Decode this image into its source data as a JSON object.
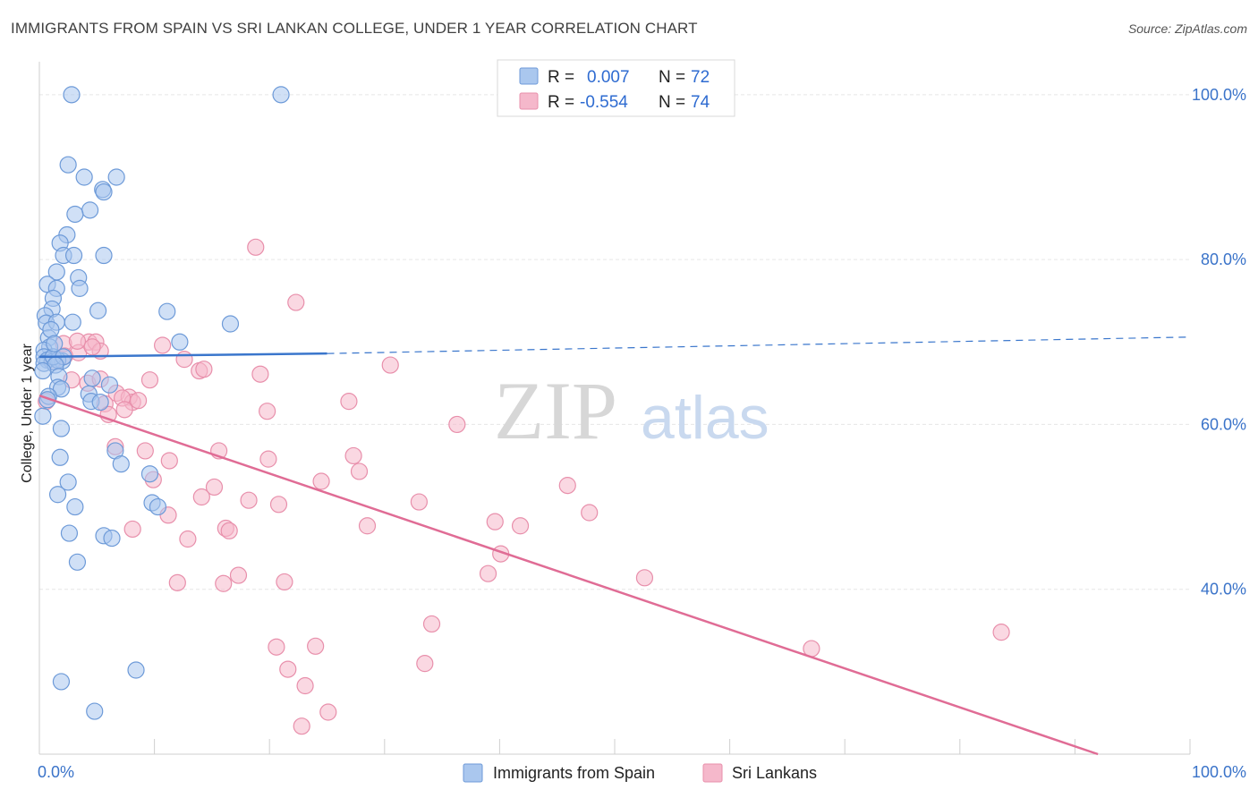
{
  "title": "IMMIGRANTS FROM SPAIN VS SRI LANKAN COLLEGE, UNDER 1 YEAR CORRELATION CHART",
  "source": "Source: ZipAtlas.com",
  "watermark": {
    "zip": "ZIP",
    "atlas": "atlas"
  },
  "colors": {
    "blue_fill": "#aac7ee",
    "blue_stroke": "#6d9ad8",
    "blue_line": "#3a76cc",
    "pink_fill": "#f5b8cb",
    "pink_stroke": "#e88fab",
    "pink_line": "#e06c95",
    "grid": "#e6e6e6",
    "tick_label": "#3a73c9"
  },
  "legend": {
    "r_label": "R =",
    "n_label": "N =",
    "rows": [
      {
        "r": "0.007",
        "n": "72"
      },
      {
        "r": "-0.554",
        "n": "74"
      }
    ]
  },
  "chart_data": {
    "type": "scatter",
    "title": "IMMIGRANTS FROM SPAIN VS SRI LANKAN COLLEGE, UNDER 1 YEAR CORRELATION CHART",
    "xlabel": "",
    "ylabel": "College, Under 1 year",
    "xlim": [
      0,
      100
    ],
    "ylim": [
      20,
      104
    ],
    "x_tick_labels": [
      {
        "value": 0,
        "label": "0.0%"
      },
      {
        "value": 100,
        "label": "100.0%"
      }
    ],
    "y_tick_labels": [
      {
        "value": 40,
        "label": "40.0%"
      },
      {
        "value": 60,
        "label": "60.0%"
      },
      {
        "value": 80,
        "label": "80.0%"
      },
      {
        "value": 100,
        "label": "100.0%"
      }
    ],
    "grid": true,
    "legend_position": "top-center",
    "series": [
      {
        "name": "Immigrants from Spain",
        "r": 0.007,
        "n": 72,
        "trend": {
          "x": [
            0,
            25
          ],
          "y": [
            68.2,
            68.6
          ],
          "dashed_extension": {
            "x": [
              25,
              100
            ],
            "y": [
              68.6,
              70.6
            ]
          }
        },
        "points": [
          [
            2.8,
            100
          ],
          [
            21,
            100
          ],
          [
            2.5,
            91.5
          ],
          [
            3.9,
            90
          ],
          [
            6.7,
            90
          ],
          [
            5.5,
            88.5
          ],
          [
            5.6,
            88.2
          ],
          [
            4.4,
            86
          ],
          [
            3.1,
            85.5
          ],
          [
            2.4,
            83
          ],
          [
            1.8,
            82
          ],
          [
            2.1,
            80.5
          ],
          [
            3,
            80.5
          ],
          [
            5.6,
            80.5
          ],
          [
            1.5,
            78.5
          ],
          [
            3.4,
            77.8
          ],
          [
            0.7,
            77
          ],
          [
            1.5,
            76.5
          ],
          [
            3.5,
            76.5
          ],
          [
            1.2,
            75.3
          ],
          [
            5.1,
            73.8
          ],
          [
            11.1,
            73.7
          ],
          [
            1.1,
            74
          ],
          [
            0.5,
            73.2
          ],
          [
            0.6,
            72.3
          ],
          [
            1.5,
            72.4
          ],
          [
            2.9,
            72.4
          ],
          [
            16.6,
            72.2
          ],
          [
            12.2,
            70
          ],
          [
            0.8,
            70.5
          ],
          [
            0.9,
            69.4
          ],
          [
            0.4,
            69
          ],
          [
            0.4,
            68.2
          ],
          [
            0.7,
            67.8
          ],
          [
            1.1,
            67.6
          ],
          [
            2,
            67.7
          ],
          [
            0.4,
            67.4
          ],
          [
            1.6,
            67.8
          ],
          [
            1.2,
            68.2
          ],
          [
            2.1,
            68.2
          ],
          [
            1.4,
            67.2
          ],
          [
            0.3,
            66.5
          ],
          [
            1.7,
            65.8
          ],
          [
            4.6,
            65.6
          ],
          [
            6.1,
            64.8
          ],
          [
            1.6,
            64.5
          ],
          [
            1.9,
            64.3
          ],
          [
            4.3,
            63.7
          ],
          [
            0.8,
            63.4
          ],
          [
            4.5,
            62.8
          ],
          [
            5.3,
            62.7
          ],
          [
            0.7,
            63
          ],
          [
            0.3,
            61
          ],
          [
            1.9,
            59.5
          ],
          [
            6.6,
            56.8
          ],
          [
            1.8,
            56
          ],
          [
            7.1,
            55.2
          ],
          [
            9.6,
            54
          ],
          [
            2.5,
            53
          ],
          [
            1.6,
            51.5
          ],
          [
            3.1,
            50
          ],
          [
            9.8,
            50.5
          ],
          [
            10.3,
            50
          ],
          [
            2.6,
            46.8
          ],
          [
            5.6,
            46.5
          ],
          [
            6.3,
            46.2
          ],
          [
            3.3,
            43.3
          ],
          [
            8.4,
            30.2
          ],
          [
            1.9,
            28.8
          ],
          [
            4.8,
            25.2
          ],
          [
            1.0,
            71.5
          ],
          [
            1.3,
            69.8
          ]
        ]
      },
      {
        "name": "Sri Lankans",
        "r": -0.554,
        "n": 74,
        "trend": {
          "x": [
            0,
            92
          ],
          "y": [
            63.5,
            20
          ]
        },
        "points": [
          [
            18.8,
            81.5
          ],
          [
            22.3,
            74.8
          ],
          [
            4.3,
            70
          ],
          [
            4.9,
            70
          ],
          [
            2.1,
            69.8
          ],
          [
            10.7,
            69.6
          ],
          [
            5.3,
            68.9
          ],
          [
            3.4,
            68.7
          ],
          [
            12.6,
            67.9
          ],
          [
            1.2,
            67.6
          ],
          [
            2.2,
            68.3
          ],
          [
            30.5,
            67.2
          ],
          [
            13.9,
            66.5
          ],
          [
            14.3,
            66.7
          ],
          [
            19.2,
            66.1
          ],
          [
            2.8,
            65.4
          ],
          [
            9.6,
            65.4
          ],
          [
            4.2,
            65
          ],
          [
            5.3,
            65.5
          ],
          [
            6.7,
            63.8
          ],
          [
            7.8,
            63.3
          ],
          [
            8.1,
            62.7
          ],
          [
            7.2,
            63.2
          ],
          [
            26.9,
            62.8
          ],
          [
            8.6,
            62.9
          ],
          [
            5.7,
            62.5
          ],
          [
            0.6,
            62.8
          ],
          [
            19.8,
            61.6
          ],
          [
            7.4,
            61.8
          ],
          [
            6.0,
            61.2
          ],
          [
            36.3,
            60
          ],
          [
            6.6,
            57.3
          ],
          [
            9.2,
            56.8
          ],
          [
            15.6,
            56.8
          ],
          [
            19.9,
            55.8
          ],
          [
            27.3,
            56.2
          ],
          [
            11.3,
            55.6
          ],
          [
            27.8,
            54.3
          ],
          [
            9.9,
            53.3
          ],
          [
            24.5,
            53.1
          ],
          [
            15.2,
            52.4
          ],
          [
            45.9,
            52.6
          ],
          [
            14.1,
            51.2
          ],
          [
            18.2,
            50.8
          ],
          [
            20.8,
            50.3
          ],
          [
            33,
            50.6
          ],
          [
            11.2,
            49
          ],
          [
            47.8,
            49.3
          ],
          [
            39.6,
            48.2
          ],
          [
            28.5,
            47.7
          ],
          [
            41.8,
            47.7
          ],
          [
            8.1,
            47.3
          ],
          [
            16.2,
            47.4
          ],
          [
            16.5,
            47.1
          ],
          [
            12.9,
            46.1
          ],
          [
            40.1,
            44.3
          ],
          [
            17.3,
            41.7
          ],
          [
            39,
            41.9
          ],
          [
            52.6,
            41.4
          ],
          [
            12,
            40.8
          ],
          [
            16,
            40.7
          ],
          [
            21.3,
            40.9
          ],
          [
            34.1,
            35.8
          ],
          [
            83.6,
            34.8
          ],
          [
            67.1,
            32.8
          ],
          [
            20.6,
            33
          ],
          [
            24,
            33.1
          ],
          [
            33.5,
            31
          ],
          [
            21.6,
            30.3
          ],
          [
            23.1,
            28.3
          ],
          [
            25.1,
            25.1
          ],
          [
            22.8,
            23.4
          ],
          [
            3.3,
            70.1
          ],
          [
            4.6,
            69.4
          ]
        ]
      }
    ]
  }
}
